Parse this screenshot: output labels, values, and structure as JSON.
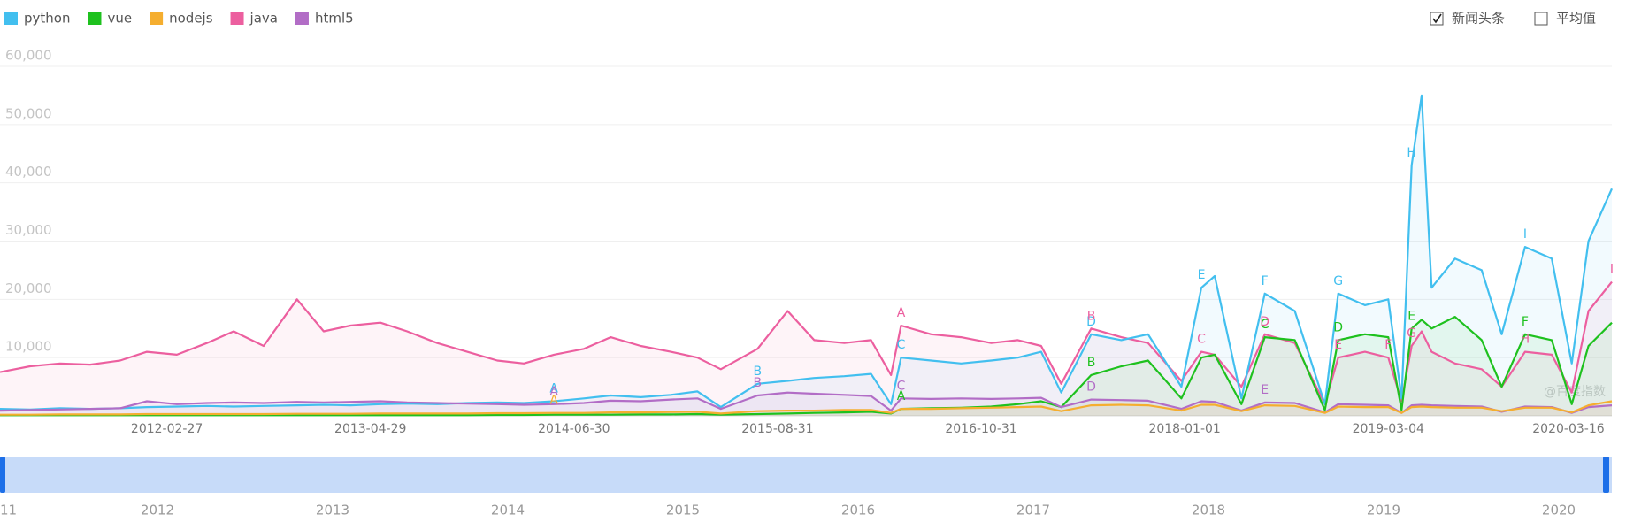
{
  "chart_data": {
    "type": "line",
    "legend": "top-left",
    "grid": true,
    "x": [
      "2011-03-14",
      "2011-05-16",
      "2011-07-18",
      "2011-09-19",
      "2011-11-21",
      "2012-01-16",
      "2012-03-19",
      "2012-05-21",
      "2012-07-16",
      "2012-09-17",
      "2012-11-26",
      "2013-01-21",
      "2013-03-18",
      "2013-05-20",
      "2013-07-15",
      "2013-09-16",
      "2013-11-18",
      "2014-01-20",
      "2014-03-17",
      "2014-05-19",
      "2014-07-21",
      "2014-09-15",
      "2014-11-17",
      "2015-01-19",
      "2015-03-16",
      "2015-05-04",
      "2015-07-20",
      "2015-09-21",
      "2015-11-16",
      "2016-01-18",
      "2016-03-14",
      "2016-04-25",
      "2016-05-16",
      "2016-07-18",
      "2016-09-19",
      "2016-11-21",
      "2017-01-16",
      "2017-03-06",
      "2017-04-17",
      "2017-06-19",
      "2017-08-21",
      "2017-10-16",
      "2017-12-25",
      "2018-02-05",
      "2018-03-05",
      "2018-04-30",
      "2018-06-18",
      "2018-08-20",
      "2018-10-22",
      "2018-11-19",
      "2019-01-14",
      "2019-03-04",
      "2019-04-01",
      "2019-04-22",
      "2019-05-13",
      "2019-06-03",
      "2019-07-22",
      "2019-09-16",
      "2019-10-28",
      "2019-12-16",
      "2020-02-10",
      "2020-03-23",
      "2020-04-27",
      "2020-06-15"
    ],
    "xlim": [
      "2011-03-14",
      "2020-06-15"
    ],
    "xticks": [
      "2012-02-27",
      "2013-04-29",
      "2014-06-30",
      "2015-08-31",
      "2016-10-31",
      "2018-01-01",
      "2019-03-04",
      "2020-03-16"
    ],
    "ylim": [
      0,
      60000
    ],
    "yticks": [
      {
        "value": 10000,
        "label": "10,000"
      },
      {
        "value": 20000,
        "label": "20,000"
      },
      {
        "value": 30000,
        "label": "30,000"
      },
      {
        "value": 40000,
        "label": "40,000"
      },
      {
        "value": 50000,
        "label": "50,000"
      },
      {
        "value": 60000,
        "label": "60,000"
      }
    ],
    "series": [
      {
        "name": "python",
        "color": "#42bfef",
        "values": [
          1200,
          1100,
          1300,
          1200,
          1300,
          1500,
          1600,
          1700,
          1600,
          1700,
          1800,
          1900,
          1800,
          2000,
          2100,
          2000,
          2200,
          2300,
          2200,
          2500,
          3000,
          3500,
          3200,
          3600,
          4200,
          1500,
          5500,
          6000,
          6500,
          6800,
          7200,
          2000,
          10000,
          9500,
          9000,
          9500,
          10000,
          11000,
          4000,
          14000,
          13000,
          14000,
          5000,
          22000,
          24000,
          3000,
          21000,
          18000,
          2000,
          21000,
          19000,
          20000,
          3000,
          43000,
          55000,
          22000,
          27000,
          25000,
          14000,
          29000,
          27000,
          9000,
          30000,
          39000
        ],
        "annotations": [
          {
            "text": "A",
            "x": "2014-05-19"
          },
          {
            "text": "B",
            "x": "2015-07-20"
          },
          {
            "text": "C",
            "x": "2016-05-16"
          },
          {
            "text": "D",
            "x": "2017-06-19"
          },
          {
            "text": "E",
            "x": "2018-02-05"
          },
          {
            "text": "F",
            "x": "2018-06-18"
          },
          {
            "text": "G",
            "x": "2018-11-19"
          },
          {
            "text": "H",
            "x": "2019-04-22"
          },
          {
            "text": "I",
            "x": "2019-12-16"
          }
        ]
      },
      {
        "name": "vue",
        "color": "#1ec11e",
        "values": [
          100,
          100,
          100,
          100,
          100,
          100,
          100,
          100,
          100,
          100,
          100,
          100,
          100,
          100,
          100,
          100,
          100,
          150,
          150,
          200,
          200,
          200,
          250,
          250,
          300,
          200,
          300,
          400,
          500,
          600,
          700,
          400,
          1200,
          1300,
          1400,
          1600,
          2000,
          2500,
          1500,
          7000,
          8500,
          9500,
          3000,
          10000,
          10500,
          2000,
          13500,
          13000,
          1000,
          13000,
          14000,
          13500,
          1000,
          15000,
          16500,
          15000,
          17000,
          13000,
          5000,
          14000,
          13000,
          2000,
          12000,
          16000
        ],
        "annotations": [
          {
            "text": "A",
            "x": "2016-05-16"
          },
          {
            "text": "B",
            "x": "2017-06-19"
          },
          {
            "text": "C",
            "x": "2018-06-18"
          },
          {
            "text": "D",
            "x": "2018-11-19"
          },
          {
            "text": "E",
            "x": "2019-04-22"
          },
          {
            "text": "F",
            "x": "2019-12-16"
          }
        ]
      },
      {
        "name": "nodejs",
        "color": "#f5ae2f",
        "values": [
          200,
          200,
          250,
          250,
          250,
          300,
          300,
          300,
          300,
          300,
          350,
          350,
          350,
          400,
          400,
          400,
          400,
          450,
          450,
          500,
          500,
          600,
          600,
          650,
          700,
          400,
          800,
          900,
          900,
          1000,
          1000,
          500,
          1200,
          1200,
          1300,
          1400,
          1500,
          1600,
          800,
          1800,
          1900,
          1800,
          900,
          1900,
          1900,
          800,
          1800,
          1700,
          500,
          1600,
          1500,
          1500,
          500,
          1500,
          1600,
          1500,
          1400,
          1400,
          800,
          1400,
          1400,
          600,
          1800,
          2500
        ],
        "annotations": [
          {
            "text": "A",
            "x": "2014-05-19"
          }
        ]
      },
      {
        "name": "java",
        "color": "#ec5f9f",
        "values": [
          7500,
          8500,
          9000,
          8800,
          9500,
          11000,
          10500,
          12500,
          14500,
          12000,
          20000,
          14500,
          15500,
          16000,
          14500,
          12500,
          11000,
          9500,
          9000,
          10500,
          11500,
          13500,
          12000,
          11000,
          10000,
          8000,
          11500,
          18000,
          13000,
          12500,
          13000,
          7000,
          15500,
          14000,
          13500,
          12500,
          13000,
          12000,
          5500,
          15000,
          13500,
          12500,
          6000,
          11000,
          10500,
          5000,
          14000,
          12500,
          2000,
          10000,
          11000,
          10000,
          2500,
          12000,
          14500,
          11000,
          9000,
          8000,
          5000,
          11000,
          10500,
          4000,
          18000,
          23000
        ],
        "annotations": [
          {
            "text": "A",
            "x": "2016-05-16"
          },
          {
            "text": "B",
            "x": "2017-06-19"
          },
          {
            "text": "C",
            "x": "2018-02-05"
          },
          {
            "text": "D",
            "x": "2018-06-18"
          },
          {
            "text": "E",
            "x": "2018-11-19"
          },
          {
            "text": "F",
            "x": "2019-03-04"
          },
          {
            "text": "G",
            "x": "2019-04-22"
          },
          {
            "text": "H",
            "x": "2019-12-16"
          },
          {
            "text": "I",
            "x": "2020-06-15"
          }
        ]
      },
      {
        "name": "html5",
        "color": "#b26dc6",
        "values": [
          900,
          1000,
          1100,
          1200,
          1300,
          2500,
          2000,
          2200,
          2300,
          2200,
          2400,
          2300,
          2400,
          2500,
          2300,
          2200,
          2100,
          2000,
          1900,
          2000,
          2200,
          2600,
          2500,
          2800,
          3000,
          1200,
          3500,
          4000,
          3800,
          3600,
          3400,
          900,
          3000,
          2900,
          3000,
          2900,
          3000,
          3100,
          1500,
          2800,
          2700,
          2600,
          1200,
          2500,
          2400,
          900,
          2300,
          2200,
          600,
          2000,
          1900,
          1800,
          500,
          1800,
          1900,
          1800,
          1700,
          1600,
          700,
          1600,
          1500,
          500,
          1500,
          1800
        ],
        "annotations": [
          {
            "text": "A",
            "x": "2014-05-19"
          },
          {
            "text": "B",
            "x": "2015-07-20"
          },
          {
            "text": "C",
            "x": "2016-05-16"
          },
          {
            "text": "D",
            "x": "2017-06-19"
          },
          {
            "text": "E",
            "x": "2018-06-18"
          }
        ]
      }
    ],
    "watermark": "@百度指数",
    "controls": [
      {
        "label": "新闻头条",
        "checked": true
      },
      {
        "label": "平均值",
        "checked": false
      }
    ],
    "slider_labels": [
      "11",
      "2012",
      "2013",
      "2014",
      "2015",
      "2016",
      "2017",
      "2018",
      "2019",
      "2020"
    ]
  }
}
